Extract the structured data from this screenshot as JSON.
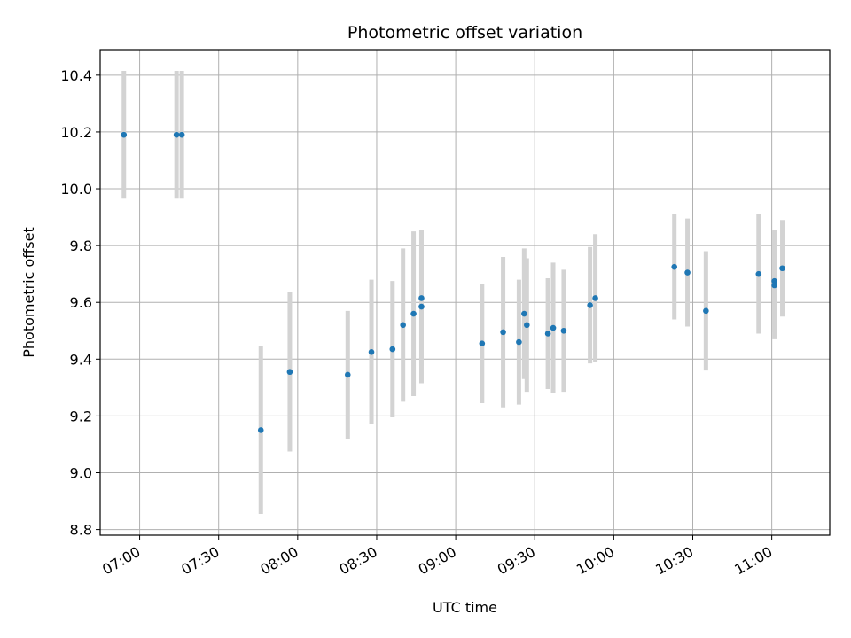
{
  "chart_data": {
    "type": "scatter",
    "title": "Photometric offset variation",
    "xlabel": "UTC time",
    "ylabel": "Photometric offset",
    "x_tick_labels": [
      "07:00",
      "07:30",
      "08:00",
      "08:30",
      "09:00",
      "09:30",
      "10:00",
      "10:30",
      "11:00"
    ],
    "y_ticks": [
      "8.8",
      "9.0",
      "9.2",
      "9.4",
      "9.6",
      "9.8",
      "10.0",
      "10.2",
      "10.4"
    ],
    "xlim": [
      "06:45",
      "11:22"
    ],
    "ylim": [
      8.78,
      10.49
    ],
    "grid": true,
    "marker_color": "#1f77b4",
    "errorbar_color": "#d3d3d3",
    "points": [
      {
        "x": "06:54",
        "y": 10.19,
        "err": 0.225
      },
      {
        "x": "07:14",
        "y": 10.19,
        "err": 0.225
      },
      {
        "x": "07:16",
        "y": 10.19,
        "err": 0.225
      },
      {
        "x": "07:46",
        "y": 9.15,
        "err": 0.295
      },
      {
        "x": "07:57",
        "y": 9.355,
        "err": 0.28
      },
      {
        "x": "08:19",
        "y": 9.345,
        "err": 0.225
      },
      {
        "x": "08:28",
        "y": 9.425,
        "err": 0.255
      },
      {
        "x": "08:36",
        "y": 9.435,
        "err": 0.24
      },
      {
        "x": "08:40",
        "y": 9.52,
        "err": 0.27
      },
      {
        "x": "08:44",
        "y": 9.56,
        "err": 0.29
      },
      {
        "x": "08:47",
        "y": 9.585,
        "err": 0.27
      },
      {
        "x": "08:47",
        "y": 9.615,
        "err": 0.24
      },
      {
        "x": "09:10",
        "y": 9.455,
        "err": 0.21
      },
      {
        "x": "09:18",
        "y": 9.495,
        "err": 0.265
      },
      {
        "x": "09:24",
        "y": 9.46,
        "err": 0.22
      },
      {
        "x": "09:26",
        "y": 9.56,
        "err": 0.23
      },
      {
        "x": "09:27",
        "y": 9.52,
        "err": 0.235
      },
      {
        "x": "09:35",
        "y": 9.49,
        "err": 0.195
      },
      {
        "x": "09:37",
        "y": 9.51,
        "err": 0.23
      },
      {
        "x": "09:41",
        "y": 9.5,
        "err": 0.215
      },
      {
        "x": "09:51",
        "y": 9.59,
        "err": 0.205
      },
      {
        "x": "09:53",
        "y": 9.615,
        "err": 0.225
      },
      {
        "x": "10:23",
        "y": 9.725,
        "err": 0.185
      },
      {
        "x": "10:28",
        "y": 9.705,
        "err": 0.19
      },
      {
        "x": "10:35",
        "y": 9.57,
        "err": 0.21
      },
      {
        "x": "10:55",
        "y": 9.7,
        "err": 0.21
      },
      {
        "x": "11:01",
        "y": 9.675,
        "err": 0.18
      },
      {
        "x": "11:01",
        "y": 9.66,
        "err": 0.19
      },
      {
        "x": "11:04",
        "y": 9.72,
        "err": 0.17
      }
    ]
  }
}
